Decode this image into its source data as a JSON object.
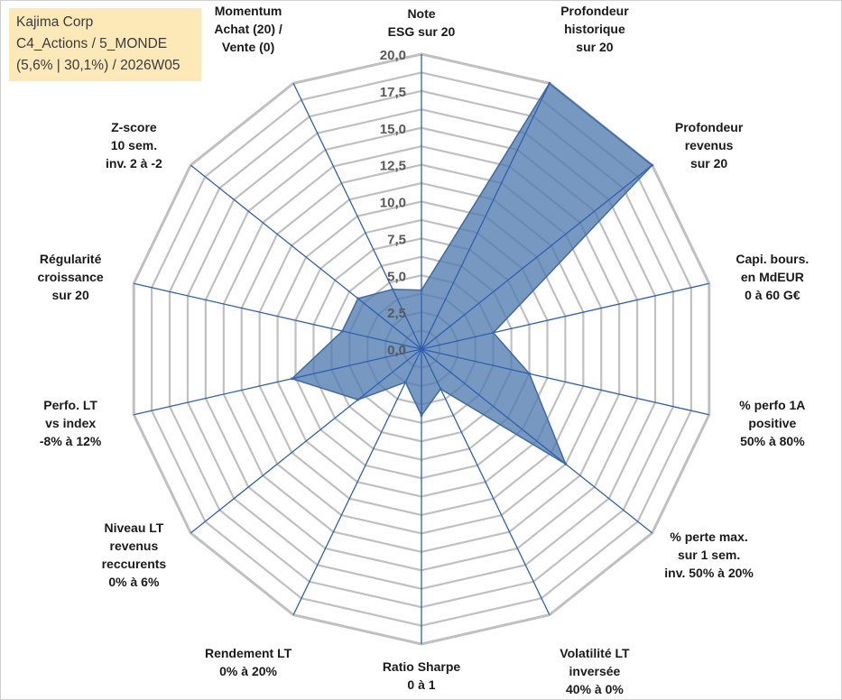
{
  "info": {
    "company": "Kajima Corp",
    "portfolio": "C4_Actions / 5_MONDE",
    "stats": "(5,6% | 30,1%) / 2026W05"
  },
  "colors": {
    "fill": "#4f7bb0",
    "stroke": "#3f6aa3",
    "spoke": "#2f5fb0",
    "grid": "#c0c0c0",
    "info_bg": "#fde9b8"
  },
  "chart_data": {
    "type": "radar",
    "title": "",
    "rmin": 0,
    "rmax": 20,
    "ticks": [
      "0,0",
      "2,5",
      "5,0",
      "7,5",
      "10,0",
      "12,5",
      "15,0",
      "17,5",
      "20,0"
    ],
    "grid": true,
    "axes": [
      {
        "lines": [
          "Note",
          "ESG sur 20"
        ],
        "value": 4.0
      },
      {
        "lines": [
          "Profondeur",
          "historique",
          "sur 20"
        ],
        "value": 20.0
      },
      {
        "lines": [
          "Profondeur",
          "revenus",
          "sur 20"
        ],
        "value": 20.0
      },
      {
        "lines": [
          "Capi. bours.",
          "en MdEUR",
          "0 à 60 G€"
        ],
        "value": 5.0
      },
      {
        "lines": [
          "% perfo 1A",
          "positive",
          "50% à 80%"
        ],
        "value": 7.5
      },
      {
        "lines": [
          "% perte max.",
          "sur 1 sem.",
          "inv. 50% à 20%"
        ],
        "value": 12.5
      },
      {
        "lines": [
          "Volatilité LT",
          "inversée",
          "40% à 0%"
        ],
        "value": 3.0
      },
      {
        "lines": [
          "Ratio Sharpe",
          "0 à 1"
        ],
        "value": 4.5
      },
      {
        "lines": [
          "Rendement LT",
          "0% à 20%"
        ],
        "value": 2.5
      },
      {
        "lines": [
          "Niveau LT",
          "revenus",
          "reccurents",
          "0% à 6%"
        ],
        "value": 5.5
      },
      {
        "lines": [
          "Perfo. LT",
          "vs index",
          "-8% à 12%"
        ],
        "value": 9.0
      },
      {
        "lines": [
          "Régularité",
          "croissance",
          "sur 20"
        ],
        "value": 5.5
      },
      {
        "lines": [
          "Z-score",
          "10 sem.",
          "inv. 2 à -2"
        ],
        "value": 5.5
      },
      {
        "lines": [
          "Momentum",
          "Achat (20) /",
          "Vente (0)"
        ],
        "value": 4.5
      }
    ]
  }
}
